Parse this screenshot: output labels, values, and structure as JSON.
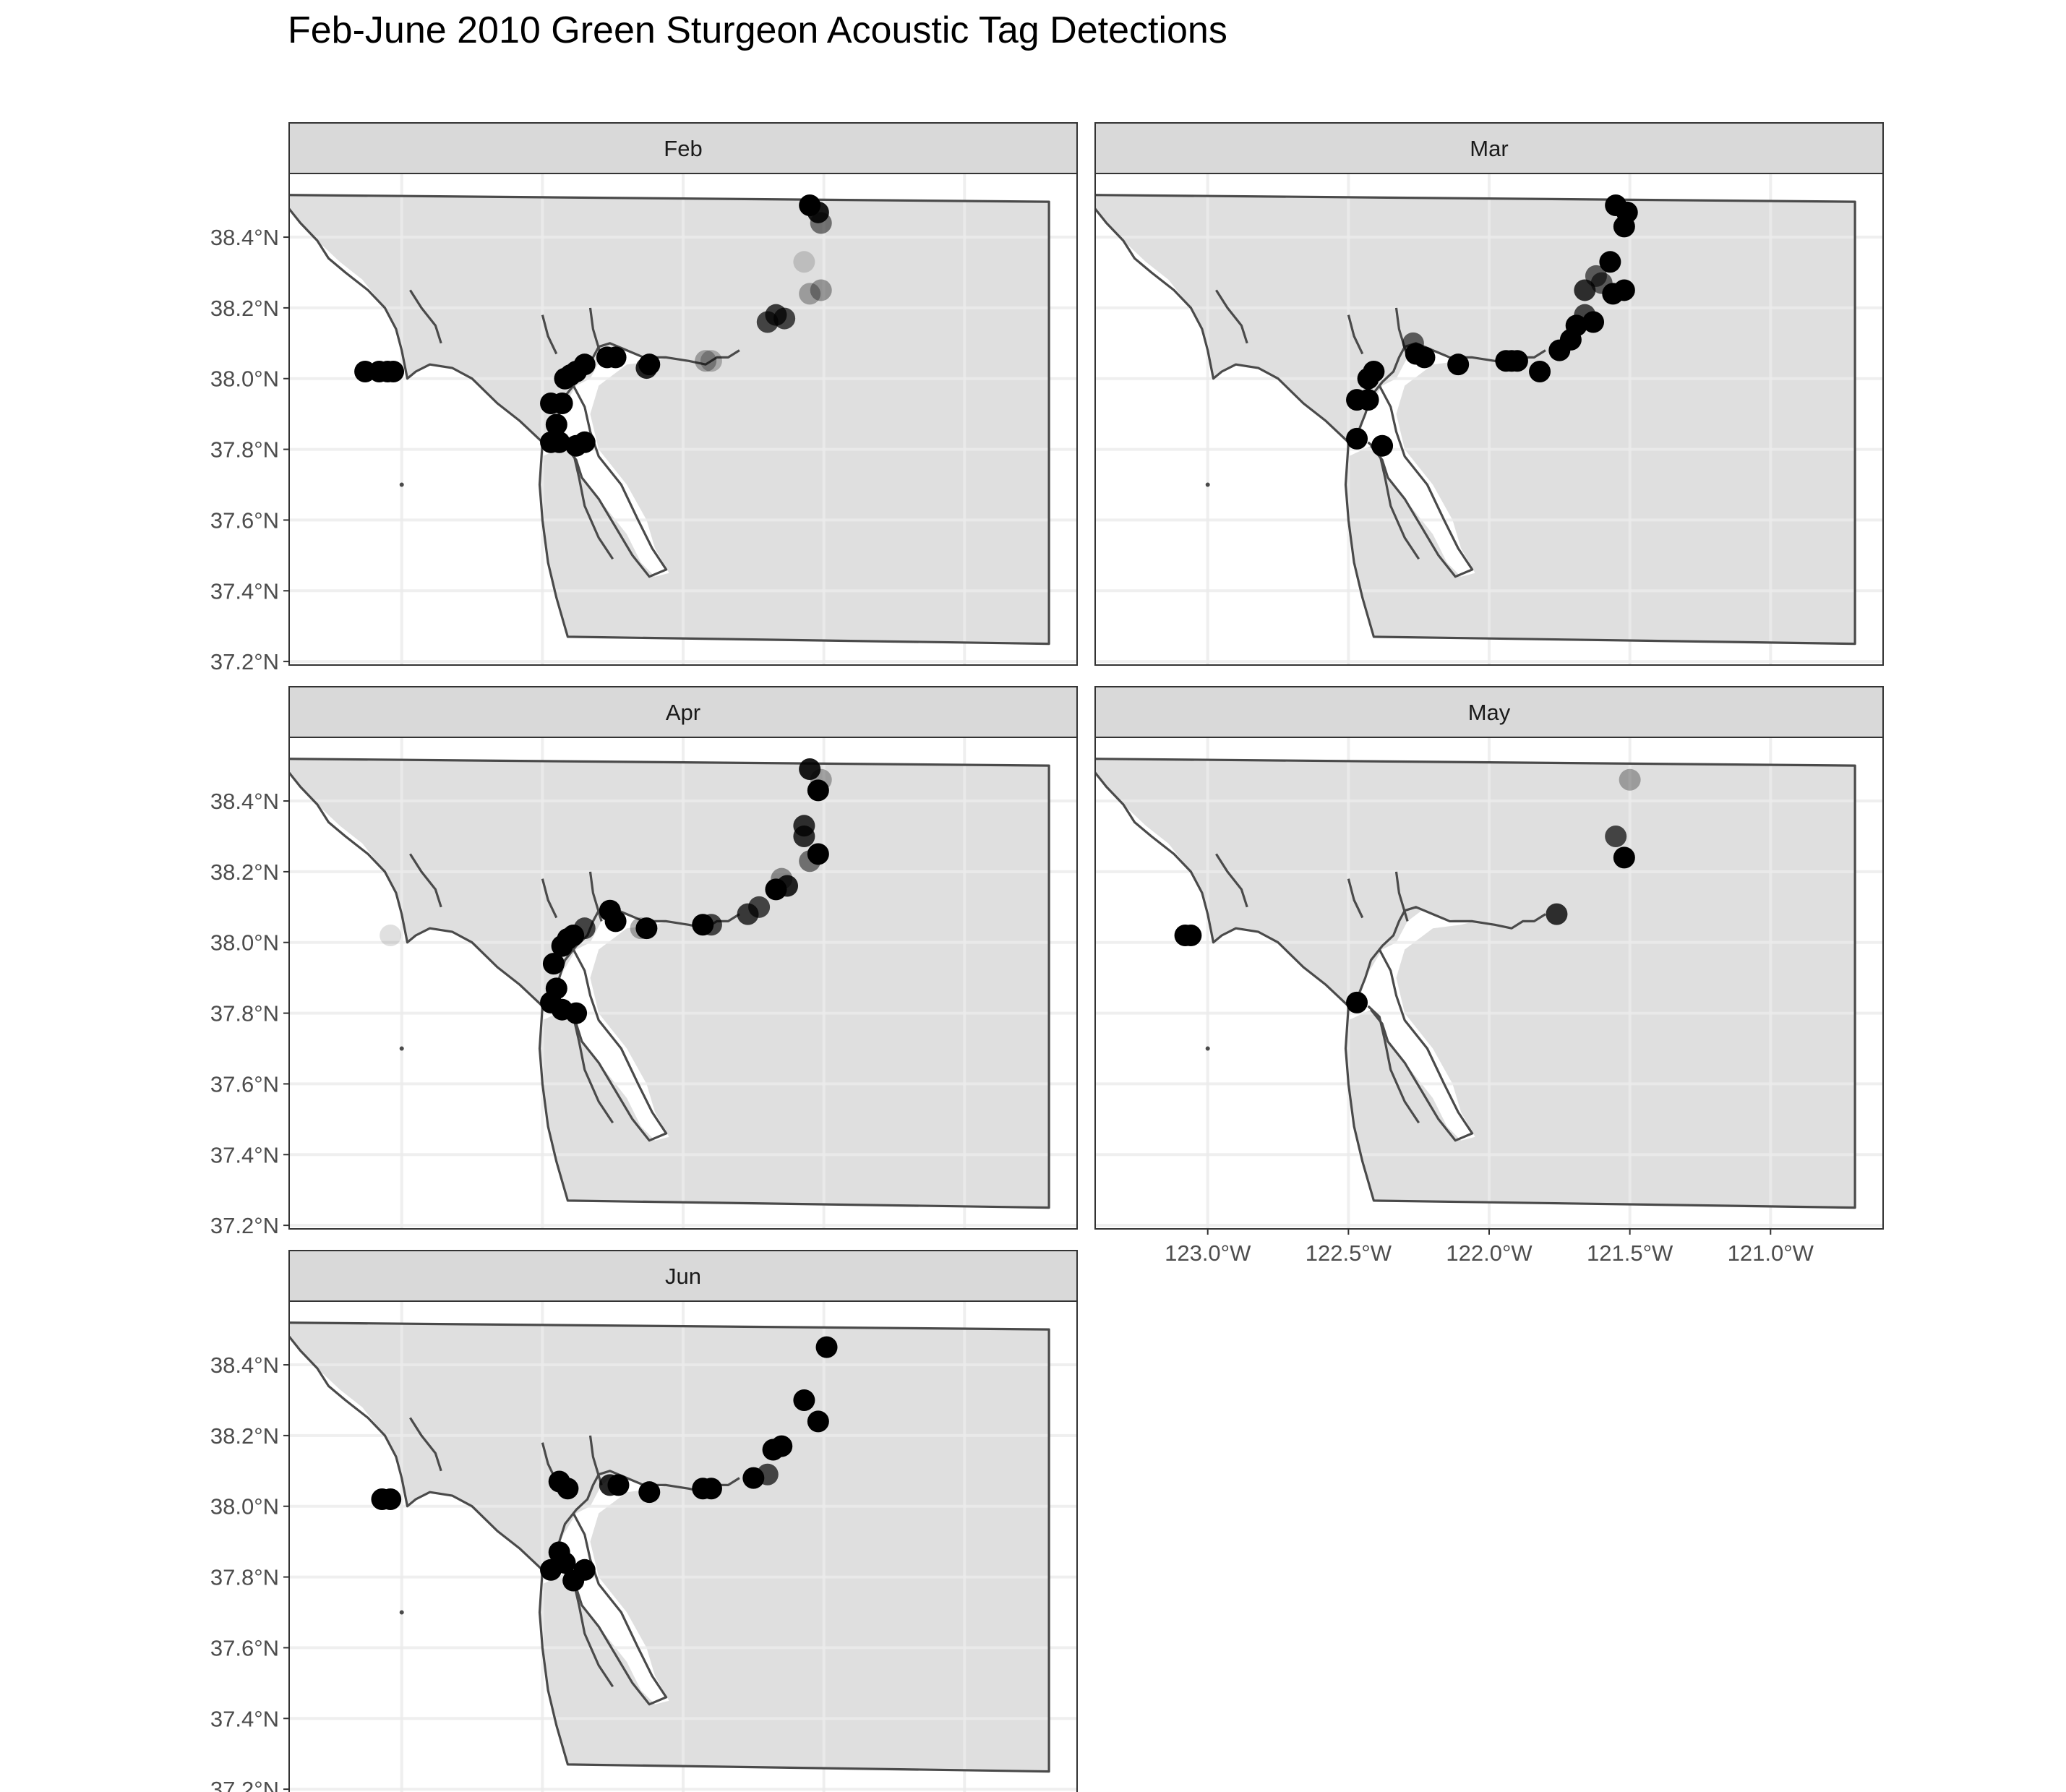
{
  "title": "Feb-June 2010 Green Sturgeon Acoustic Tag Detections",
  "chart_data": {
    "type": "scatter",
    "subtype": "faceted map",
    "title": "Feb-June 2010 Green Sturgeon Acoustic Tag Detections",
    "grid": true,
    "xlim": [
      -123.4,
      -120.6
    ],
    "ylim": [
      37.19,
      38.58
    ],
    "x_ticks": [
      -123.0,
      -122.5,
      -122.0,
      -121.5,
      -121.0
    ],
    "x_tick_labels": [
      "123.0°W",
      "122.5°W",
      "122.0°W",
      "121.5°W",
      "121.0°W"
    ],
    "y_ticks": [
      37.2,
      37.4,
      37.6,
      37.8,
      38.0,
      38.2,
      38.4
    ],
    "y_tick_labels": [
      "37.2°N",
      "37.4°N",
      "37.6°N",
      "37.8°N",
      "38.0°N",
      "38.2°N",
      "38.4°N"
    ],
    "colors": {
      "land": "#dfdfdf",
      "water": "#ffffff",
      "outline": "#4a4a4a",
      "point": "#000000",
      "strip": "#d9d9d9",
      "grid": "#ebebeb",
      "frame": "#333333"
    },
    "facets": [
      {
        "label": "Feb",
        "points": [
          [
            -123.13,
            38.02,
            1
          ],
          [
            -123.08,
            38.02,
            1
          ],
          [
            -123.05,
            38.02,
            1
          ],
          [
            -123.03,
            38.02,
            1
          ],
          [
            -122.47,
            37.93,
            1
          ],
          [
            -122.43,
            37.93,
            1
          ],
          [
            -122.45,
            37.87,
            1
          ],
          [
            -122.47,
            37.82,
            1
          ],
          [
            -122.44,
            37.82,
            1
          ],
          [
            -122.38,
            37.81,
            1
          ],
          [
            -122.35,
            37.82,
            1
          ],
          [
            -122.42,
            38.0,
            1
          ],
          [
            -122.4,
            38.01,
            1
          ],
          [
            -122.38,
            38.02,
            1
          ],
          [
            -122.35,
            38.04,
            1
          ],
          [
            -122.27,
            38.06,
            1
          ],
          [
            -122.24,
            38.06,
            1
          ],
          [
            -122.13,
            38.03,
            0.85
          ],
          [
            -122.12,
            38.04,
            1
          ],
          [
            -121.92,
            38.05,
            0.3
          ],
          [
            -121.9,
            38.05,
            0.25
          ],
          [
            -121.7,
            38.16,
            0.7
          ],
          [
            -121.67,
            38.18,
            0.75
          ],
          [
            -121.64,
            38.17,
            0.7
          ],
          [
            -121.55,
            38.49,
            1
          ],
          [
            -121.52,
            38.47,
            0.9
          ],
          [
            -121.51,
            38.44,
            0.5
          ],
          [
            -121.57,
            38.33,
            0.15
          ],
          [
            -121.55,
            38.24,
            0.3
          ],
          [
            -121.51,
            38.25,
            0.35
          ]
        ]
      },
      {
        "label": "Mar",
        "points": [
          [
            -122.47,
            37.83,
            1
          ],
          [
            -122.38,
            37.81,
            1
          ],
          [
            -122.47,
            37.94,
            1
          ],
          [
            -122.43,
            37.94,
            1
          ],
          [
            -122.43,
            38.0,
            1
          ],
          [
            -122.41,
            38.02,
            1
          ],
          [
            -122.27,
            38.1,
            0.6
          ],
          [
            -122.26,
            38.07,
            1
          ],
          [
            -122.23,
            38.06,
            1
          ],
          [
            -122.11,
            38.04,
            1
          ],
          [
            -121.94,
            38.05,
            1
          ],
          [
            -121.92,
            38.05,
            1
          ],
          [
            -121.9,
            38.05,
            1
          ],
          [
            -121.82,
            38.02,
            1
          ],
          [
            -121.75,
            38.08,
            1
          ],
          [
            -121.71,
            38.11,
            1
          ],
          [
            -121.69,
            38.15,
            1
          ],
          [
            -121.66,
            38.18,
            0.7
          ],
          [
            -121.63,
            38.16,
            1
          ],
          [
            -121.66,
            38.25,
            0.8
          ],
          [
            -121.6,
            38.27,
            0.6
          ],
          [
            -121.62,
            38.29,
            0.6
          ],
          [
            -121.57,
            38.33,
            1
          ],
          [
            -121.56,
            38.24,
            1
          ],
          [
            -121.52,
            38.25,
            1
          ],
          [
            -121.55,
            38.49,
            1
          ],
          [
            -121.51,
            38.47,
            1
          ],
          [
            -121.52,
            38.43,
            1
          ]
        ]
      },
      {
        "label": "Apr",
        "points": [
          [
            -123.04,
            38.02,
            0.12
          ],
          [
            -122.47,
            37.83,
            1
          ],
          [
            -122.43,
            37.81,
            1
          ],
          [
            -122.45,
            37.87,
            1
          ],
          [
            -122.38,
            37.8,
            1
          ],
          [
            -122.46,
            37.94,
            1
          ],
          [
            -122.43,
            37.99,
            1
          ],
          [
            -122.41,
            38.01,
            1
          ],
          [
            -122.39,
            38.02,
            1
          ],
          [
            -122.35,
            38.04,
            0.7
          ],
          [
            -122.26,
            38.09,
            1
          ],
          [
            -122.24,
            38.06,
            1
          ],
          [
            -122.15,
            38.04,
            0.3
          ],
          [
            -122.13,
            38.04,
            1
          ],
          [
            -121.93,
            38.05,
            1
          ],
          [
            -121.9,
            38.05,
            0.7
          ],
          [
            -121.77,
            38.08,
            0.75
          ],
          [
            -121.73,
            38.1,
            0.7
          ],
          [
            -121.67,
            38.15,
            1
          ],
          [
            -121.65,
            38.18,
            0.4
          ],
          [
            -121.63,
            38.16,
            0.85
          ],
          [
            -121.55,
            38.23,
            0.5
          ],
          [
            -121.52,
            38.25,
            1
          ],
          [
            -121.57,
            38.3,
            0.8
          ],
          [
            -121.57,
            38.33,
            0.8
          ],
          [
            -121.52,
            38.43,
            1
          ],
          [
            -121.51,
            38.46,
            0.3
          ],
          [
            -121.55,
            38.49,
            0.9
          ]
        ]
      },
      {
        "label": "May",
        "points": [
          [
            -123.08,
            38.02,
            1
          ],
          [
            -123.06,
            38.02,
            1
          ],
          [
            -122.47,
            37.83,
            1
          ],
          [
            -121.76,
            38.08,
            0.8
          ],
          [
            -121.55,
            38.3,
            0.7
          ],
          [
            -121.52,
            38.24,
            1
          ],
          [
            -121.5,
            38.46,
            0.3
          ]
        ]
      },
      {
        "label": "Jun",
        "points": [
          [
            -123.07,
            38.02,
            1
          ],
          [
            -123.04,
            38.02,
            1
          ],
          [
            -122.47,
            37.82,
            1
          ],
          [
            -122.44,
            37.87,
            1
          ],
          [
            -122.42,
            37.84,
            1
          ],
          [
            -122.39,
            37.79,
            1
          ],
          [
            -122.35,
            37.82,
            1
          ],
          [
            -122.44,
            38.07,
            1
          ],
          [
            -122.41,
            38.05,
            1
          ],
          [
            -122.26,
            38.06,
            0.85
          ],
          [
            -122.23,
            38.06,
            1
          ],
          [
            -122.12,
            38.04,
            1
          ],
          [
            -121.93,
            38.05,
            1
          ],
          [
            -121.9,
            38.05,
            1
          ],
          [
            -121.75,
            38.08,
            1
          ],
          [
            -121.7,
            38.09,
            0.7
          ],
          [
            -121.68,
            38.16,
            1
          ],
          [
            -121.65,
            38.17,
            1
          ],
          [
            -121.57,
            38.3,
            1
          ],
          [
            -121.52,
            38.24,
            1
          ],
          [
            -121.49,
            38.45,
            1
          ]
        ]
      }
    ]
  }
}
